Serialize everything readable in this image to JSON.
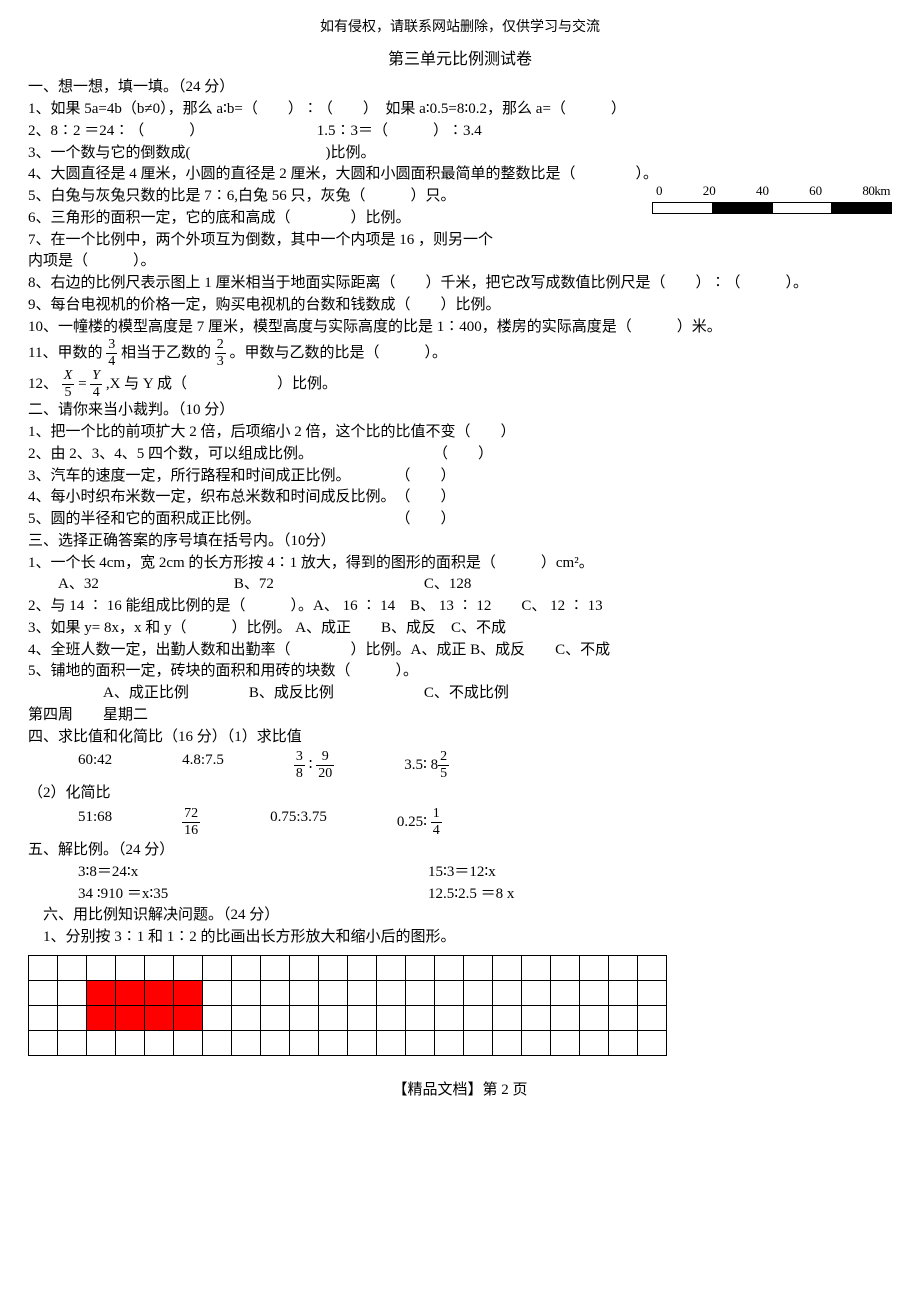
{
  "header_note": "如有侵权，请联系网站删除，仅供学习与交流",
  "title": "第三单元比例测试卷",
  "sec1_title": "一、想一想，填一填。（24 分）",
  "q1_1": "1、如果 5a=4b（b≠0），那么 a∶b=（　　）∶（　　）　如果 a∶0.5=8∶0.2，那么 a=（　　　）",
  "q1_2": "2、8∶2 ＝24∶（　　　）　　　　　　　　1.5∶3＝（　　　）∶3.4",
  "q1_3": "3、一个数与它的倒数成(　　　　　　　　　)比例。",
  "q1_4": "4、大圆直径是 4 厘米，小圆的直径是 2 厘米，大圆和小圆面积最简单的整数比是（　　　　）。",
  "q1_5": "5、白兔与灰兔只数的比是 7∶6,白兔 56 只，灰兔（　　　）只。",
  "q1_6": "6、三角形的面积一定，它的底和高成（　　　　）比例。",
  "q1_7a": "7、在一个比例中，两个外项互为倒数，其中一个内项是 16 ，则另一个",
  "q1_7b": "内项是（　　　）。",
  "q1_8": "8、右边的比例尺表示图上 1 厘米相当于地面实际距离（　　）千米，把它改写成数值比例尺是（　　）∶（　　　）。",
  "q1_9": "9、每台电视机的价格一定，购买电视机的台数和钱数成（　　）比例。",
  "q1_10": "10、一幢楼的模型高度是 7 厘米，模型高度与实际高度的比是 1∶400，楼房的实际高度是（　　　）米。",
  "q1_11a": "11、甲数的",
  "q1_11b": "相当于乙数的",
  "q1_11c": "。甲数与乙数的比是（　　　）。",
  "q1_12a": "12、",
  "q1_12b": ",X 与 Y 成（　　　　　　）比例。",
  "frac_3_4_n": "3",
  "frac_3_4_d": "4",
  "frac_2_3_n": "2",
  "frac_2_3_d": "3",
  "frac_X_5_n": "X",
  "frac_X_5_d": "5",
  "frac_Y_4_n": "Y",
  "frac_Y_4_d": "4",
  "sec2_title": "二、请你来当小裁判。（10 分）",
  "q2_1": "1、把一个比的前项扩大 2 倍，后项缩小 2 倍，这个比的比值不变（　　）",
  "q2_2": "2、由 2、3、4、5 四个数，可以组成比例。　　　　　　　　　（　　）",
  "q2_3": "3、汽车的速度一定，所行路程和时间成正比例。　　　　（　　）",
  "q2_4": "4、每小时织布米数一定，织布总米数和时间成反比例。　（　　）",
  "q2_5": "5、圆的半径和它的面积成正比例。　　　　　　　　　　（　　）",
  "sec3_title": "三、选择正确答案的序号填在括号内。（10分）",
  "q3_1": "1、一个长 4cm，宽 2cm 的长方形按 4∶1 放大，得到的图形的面积是（　　　）cm²。",
  "q3_1opts": "　　A、32　　　　　　　　　B、72　　　　　　　　　　C、128",
  "q3_2": "2、与 14 ∶ 16 能组成比例的是（　　　）。A、 16 ∶ 14　B、 13 ∶ 12　　C、 12 ∶ 13",
  "q3_3": "3、如果 y= 8x，x 和 y（　　　）比例。 A、成正　　B、成反　C、不成",
  "q3_4": "4、全班人数一定，出勤人数和出勤率（　　　　）比例。A、成正 B、成反　　C、不成",
  "q3_5": "5、铺地的面积一定，砖块的面积和用砖的块数（　　　）。",
  "q3_5opts": "　　　　　A、成正比例　　　　B、成反比例　　　　　　C、不成比例",
  "week_line": "第四周　　星期二",
  "sec4_title": "四、求比值和化简比（16 分）（1）求比值",
  "r1a": "60:42",
  "r1b": "4.8:7.5",
  "r1c_n1": "3",
  "r1c_d1": "8",
  "r1c_mid": "∶",
  "r1c_n2": "9",
  "r1c_d2": "20",
  "r1d_pre": "3.5∶ 8",
  "r1d_n": "2",
  "r1d_d": "5",
  "sec4_sub2": "（2）化简比",
  "r2a": "51:68",
  "r2b_n": "72",
  "r2b_d": "16",
  "r2c": "0.75:3.75",
  "r2d_pre": "0.25∶",
  "r2d_n": "1",
  "r2d_d": "4",
  "sec5_title": "五、解比例。（24 分）",
  "s1a": "3∶8＝24∶x",
  "s1b": "15∶3＝12∶x",
  "s2a": "34 ∶910 ＝x∶35",
  "s2b": "12.5∶2.5 ＝8 x",
  "sec6_title": "　六、用比例知识解决问题。（24 分）",
  "q6_1": "　1、分别按 3∶1 和 1∶2 的比画出长方形放大和缩小后的图形。",
  "ruler": {
    "labels": [
      "0",
      "20",
      "40",
      "60",
      "80km"
    ]
  },
  "grid": {
    "rows": 4,
    "cols": 22,
    "red_cells": [
      [
        1,
        2
      ],
      [
        1,
        3
      ],
      [
        1,
        4
      ],
      [
        1,
        5
      ],
      [
        2,
        2
      ],
      [
        2,
        3
      ],
      [
        2,
        4
      ],
      [
        2,
        5
      ]
    ]
  },
  "footer": "【精品文档】第 2 页"
}
